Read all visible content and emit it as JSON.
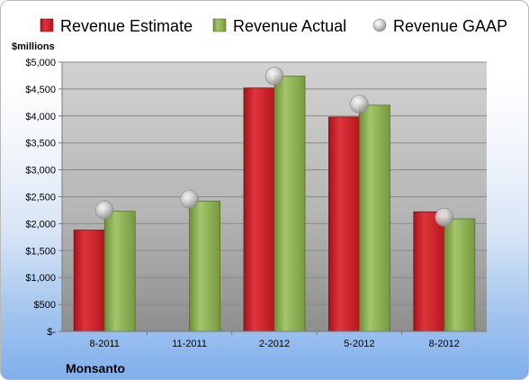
{
  "chart_data": {
    "type": "bar",
    "categories": [
      "8-2011",
      "11-2011",
      "2-2012",
      "5-2012",
      "8-2012"
    ],
    "series": [
      {
        "name": "Revenue Estimate",
        "kind": "bar",
        "color": "#d0202a",
        "values": [
          1880,
          null,
          4520,
          3980,
          2220
        ]
      },
      {
        "name": "Revenue Actual",
        "kind": "bar",
        "color": "#8cb050",
        "values": [
          2230,
          2420,
          4740,
          4200,
          2090
        ]
      },
      {
        "name": "Revenue GAAP",
        "kind": "marker",
        "color": "#c0c0c0",
        "values": [
          2250,
          2450,
          4740,
          4220,
          2120
        ]
      }
    ],
    "ylabel": "$millions",
    "ylim": [
      0,
      5000
    ],
    "yticks": [
      0,
      500,
      1000,
      1500,
      2000,
      2500,
      3000,
      3500,
      4000,
      4500,
      5000
    ],
    "ytick_labels": [
      "$-",
      "$500",
      "$1,000",
      "$1,500",
      "$2,000",
      "$2,500",
      "$3,000",
      "$3,500",
      "$4,000",
      "$4,500",
      "$5,000"
    ],
    "grid": true,
    "legend_position": "top",
    "company": "Monsanto"
  }
}
